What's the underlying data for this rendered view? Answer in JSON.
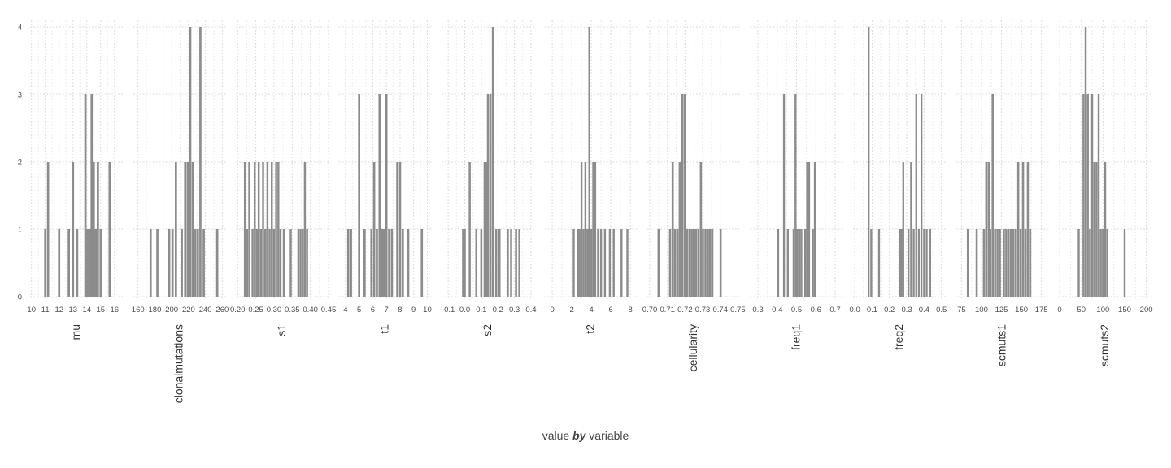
{
  "caption": {
    "part1": "value",
    "part2": "by",
    "part3": "variable"
  },
  "chart_data": {
    "type": "bar",
    "subtype": "faceted-histogram",
    "y_ticks": [
      0,
      1,
      2,
      3,
      4
    ],
    "ylim": [
      0,
      4
    ],
    "grid": true,
    "bar_color": "#8c8c8c",
    "grid_color": "#dcdcdc",
    "panels": [
      {
        "name": "mu",
        "xlim": [
          9.9,
          16.6
        ],
        "x_ticks": [
          10,
          11,
          12,
          13,
          14,
          15,
          16
        ],
        "tick_labels": [
          "10",
          "11",
          "12",
          "13",
          "14",
          "15",
          "16"
        ],
        "bin_width": 0.16,
        "bars": [
          [
            11.0,
            1
          ],
          [
            11.2,
            2
          ],
          [
            12.0,
            1
          ],
          [
            12.7,
            1
          ],
          [
            13.0,
            2
          ],
          [
            13.3,
            1
          ],
          [
            13.9,
            3
          ],
          [
            14.05,
            1
          ],
          [
            14.2,
            1
          ],
          [
            14.35,
            3
          ],
          [
            14.5,
            2
          ],
          [
            14.65,
            1
          ],
          [
            14.8,
            2
          ],
          [
            15.0,
            1
          ],
          [
            15.65,
            2
          ]
        ]
      },
      {
        "name": "clonalmutations",
        "xlim": [
          154,
          264
        ],
        "x_ticks": [
          160,
          180,
          200,
          220,
          240,
          260
        ],
        "tick_labels": [
          "160",
          "180",
          "200",
          "220",
          "240",
          "260"
        ],
        "bin_width": 2.6,
        "bars": [
          [
            175,
            1
          ],
          [
            183,
            1
          ],
          [
            197,
            1
          ],
          [
            201,
            1
          ],
          [
            205,
            2
          ],
          [
            212,
            1
          ],
          [
            216,
            2
          ],
          [
            219,
            2
          ],
          [
            222,
            4
          ],
          [
            225,
            2
          ],
          [
            228,
            1
          ],
          [
            231,
            1
          ],
          [
            234,
            4
          ],
          [
            238,
            1
          ],
          [
            254,
            1
          ]
        ]
      },
      {
        "name": "s1",
        "xlim": [
          0.195,
          0.45
        ],
        "x_ticks": [
          0.2,
          0.25,
          0.3,
          0.35,
          0.4,
          0.45
        ],
        "tick_labels": [
          "0.20",
          "0.25",
          "0.30",
          "0.35",
          "0.40",
          "0.45"
        ],
        "bin_width": 0.0055,
        "bars": [
          [
            0.22,
            2
          ],
          [
            0.226,
            1
          ],
          [
            0.232,
            2
          ],
          [
            0.241,
            1
          ],
          [
            0.247,
            2
          ],
          [
            0.253,
            1
          ],
          [
            0.258,
            2
          ],
          [
            0.264,
            1
          ],
          [
            0.27,
            2
          ],
          [
            0.276,
            1
          ],
          [
            0.282,
            2
          ],
          [
            0.288,
            1
          ],
          [
            0.294,
            2
          ],
          [
            0.3,
            1
          ],
          [
            0.306,
            2
          ],
          [
            0.312,
            2
          ],
          [
            0.318,
            1
          ],
          [
            0.327,
            1
          ],
          [
            0.346,
            1
          ],
          [
            0.367,
            1
          ],
          [
            0.373,
            1
          ],
          [
            0.379,
            1
          ],
          [
            0.385,
            2
          ],
          [
            0.391,
            1
          ]
        ]
      },
      {
        "name": "t1",
        "xlim": [
          3.5,
          10.3
        ],
        "x_ticks": [
          4,
          5,
          6,
          7,
          8,
          9,
          10
        ],
        "tick_labels": [
          "4",
          "5",
          "6",
          "7",
          "8",
          "9",
          "10"
        ],
        "bin_width": 0.16,
        "bars": [
          [
            4.2,
            1
          ],
          [
            4.4,
            1
          ],
          [
            5.0,
            3
          ],
          [
            5.4,
            1
          ],
          [
            5.9,
            1
          ],
          [
            6.1,
            2
          ],
          [
            6.3,
            1
          ],
          [
            6.5,
            3
          ],
          [
            6.7,
            1
          ],
          [
            6.85,
            1
          ],
          [
            7.0,
            3
          ],
          [
            7.2,
            1
          ],
          [
            7.4,
            1
          ],
          [
            7.8,
            2
          ],
          [
            8.0,
            2
          ],
          [
            8.2,
            1
          ],
          [
            8.6,
            1
          ],
          [
            9.6,
            1
          ]
        ]
      },
      {
        "name": "s2",
        "xlim": [
          -0.14,
          0.42
        ],
        "x_ticks": [
          -0.1,
          0.0,
          0.1,
          0.2,
          0.3,
          0.4
        ],
        "tick_labels": [
          "-0.1",
          "0.0",
          "0.1",
          "0.2",
          "0.3",
          "0.4"
        ],
        "bin_width": 0.0125,
        "bars": [
          [
            -0.01,
            1
          ],
          [
            0.0,
            1
          ],
          [
            0.03,
            2
          ],
          [
            0.07,
            1
          ],
          [
            0.1,
            1
          ],
          [
            0.12,
            2
          ],
          [
            0.13,
            2
          ],
          [
            0.14,
            3
          ],
          [
            0.155,
            3
          ],
          [
            0.17,
            4
          ],
          [
            0.19,
            1
          ],
          [
            0.21,
            1
          ],
          [
            0.26,
            1
          ],
          [
            0.28,
            1
          ],
          [
            0.31,
            1
          ],
          [
            0.33,
            1
          ]
        ]
      },
      {
        "name": "t2",
        "xlim": [
          -0.8,
          8.7
        ],
        "x_ticks": [
          0,
          2,
          4,
          6,
          8
        ],
        "tick_labels": [
          "0",
          "2",
          "4",
          "6",
          "8"
        ],
        "bin_width": 0.2,
        "bars": [
          [
            2.2,
            1
          ],
          [
            2.6,
            1
          ],
          [
            2.8,
            1
          ],
          [
            3.0,
            2
          ],
          [
            3.2,
            1
          ],
          [
            3.4,
            2
          ],
          [
            3.6,
            1
          ],
          [
            3.8,
            4
          ],
          [
            4.0,
            1
          ],
          [
            4.2,
            2
          ],
          [
            4.4,
            2
          ],
          [
            4.7,
            1
          ],
          [
            5.0,
            1
          ],
          [
            5.4,
            1
          ],
          [
            5.9,
            1
          ],
          [
            6.3,
            1
          ],
          [
            7.1,
            1
          ],
          [
            7.7,
            1
          ]
        ]
      },
      {
        "name": "cellularity",
        "xlim": [
          0.6986,
          0.7512
        ],
        "x_ticks": [
          0.7,
          0.71,
          0.72,
          0.73,
          0.74,
          0.75
        ],
        "tick_labels": [
          "0.70",
          "0.71",
          "0.72",
          "0.73",
          "0.74",
          "0.75"
        ],
        "bin_width": 0.0012,
        "bars": [
          [
            0.705,
            1
          ],
          [
            0.7115,
            1
          ],
          [
            0.713,
            2
          ],
          [
            0.7143,
            1
          ],
          [
            0.7157,
            1
          ],
          [
            0.717,
            2
          ],
          [
            0.7184,
            3
          ],
          [
            0.7198,
            3
          ],
          [
            0.7212,
            1
          ],
          [
            0.7226,
            1
          ],
          [
            0.7238,
            1
          ],
          [
            0.725,
            1
          ],
          [
            0.7262,
            1
          ],
          [
            0.7276,
            1
          ],
          [
            0.729,
            2
          ],
          [
            0.7302,
            1
          ],
          [
            0.7316,
            1
          ],
          [
            0.733,
            1
          ],
          [
            0.7342,
            1
          ],
          [
            0.7355,
            1
          ],
          [
            0.7402,
            1
          ]
        ]
      },
      {
        "name": "freq1",
        "xlim": [
          0.26,
          0.74
        ],
        "x_ticks": [
          0.3,
          0.4,
          0.5,
          0.6,
          0.7
        ],
        "tick_labels": [
          "0.3",
          "0.4",
          "0.5",
          "0.6",
          "0.7"
        ],
        "bin_width": 0.01,
        "bars": [
          [
            0.405,
            1
          ],
          [
            0.435,
            3
          ],
          [
            0.455,
            1
          ],
          [
            0.485,
            1
          ],
          [
            0.495,
            3
          ],
          [
            0.505,
            1
          ],
          [
            0.515,
            1
          ],
          [
            0.525,
            1
          ],
          [
            0.545,
            1
          ],
          [
            0.555,
            2
          ],
          [
            0.565,
            2
          ],
          [
            0.585,
            1
          ],
          [
            0.595,
            2
          ]
        ]
      },
      {
        "name": "freq2",
        "xlim": [
          -0.01,
          0.525
        ],
        "x_ticks": [
          0.0,
          0.1,
          0.2,
          0.3,
          0.4,
          0.5
        ],
        "tick_labels": [
          "0.0",
          "0.1",
          "0.2",
          "0.3",
          "0.4",
          "0.5"
        ],
        "bin_width": 0.011,
        "bars": [
          [
            0.08,
            4
          ],
          [
            0.095,
            1
          ],
          [
            0.14,
            1
          ],
          [
            0.26,
            1
          ],
          [
            0.27,
            1
          ],
          [
            0.28,
            2
          ],
          [
            0.31,
            1
          ],
          [
            0.325,
            2
          ],
          [
            0.34,
            1
          ],
          [
            0.355,
            3
          ],
          [
            0.37,
            1
          ],
          [
            0.385,
            3
          ],
          [
            0.4,
            1
          ],
          [
            0.415,
            1
          ],
          [
            0.435,
            1
          ]
        ]
      },
      {
        "name": "scmuts1",
        "xlim": [
          68,
          184
        ],
        "x_ticks": [
          75,
          100,
          125,
          150,
          175
        ],
        "tick_labels": [
          "75",
          "100",
          "125",
          "150",
          "175"
        ],
        "bin_width": 2.6,
        "bars": [
          [
            83,
            1
          ],
          [
            94,
            1
          ],
          [
            103,
            1
          ],
          [
            106,
            2
          ],
          [
            109,
            2
          ],
          [
            111,
            1
          ],
          [
            114,
            3
          ],
          [
            117,
            1
          ],
          [
            120,
            1
          ],
          [
            123,
            1
          ],
          [
            128,
            1
          ],
          [
            131,
            1
          ],
          [
            134,
            1
          ],
          [
            137,
            1
          ],
          [
            140,
            1
          ],
          [
            143,
            1
          ],
          [
            146,
            2
          ],
          [
            149,
            1
          ],
          [
            152,
            2
          ],
          [
            155,
            1
          ],
          [
            158,
            2
          ],
          [
            161,
            1
          ]
        ]
      },
      {
        "name": "scmuts2",
        "xlim": [
          -2,
          212
        ],
        "x_ticks": [
          0,
          50,
          100,
          150,
          200
        ],
        "tick_labels": [
          "0",
          "50",
          "100",
          "150",
          "200"
        ],
        "bin_width": 4.6,
        "bars": [
          [
            44,
            1
          ],
          [
            55,
            3
          ],
          [
            60,
            4
          ],
          [
            65,
            3
          ],
          [
            70,
            1
          ],
          [
            75,
            3
          ],
          [
            80,
            2
          ],
          [
            85,
            2
          ],
          [
            90,
            3
          ],
          [
            95,
            1
          ],
          [
            100,
            1
          ],
          [
            105,
            2
          ],
          [
            110,
            1
          ],
          [
            150,
            1
          ]
        ]
      }
    ]
  }
}
